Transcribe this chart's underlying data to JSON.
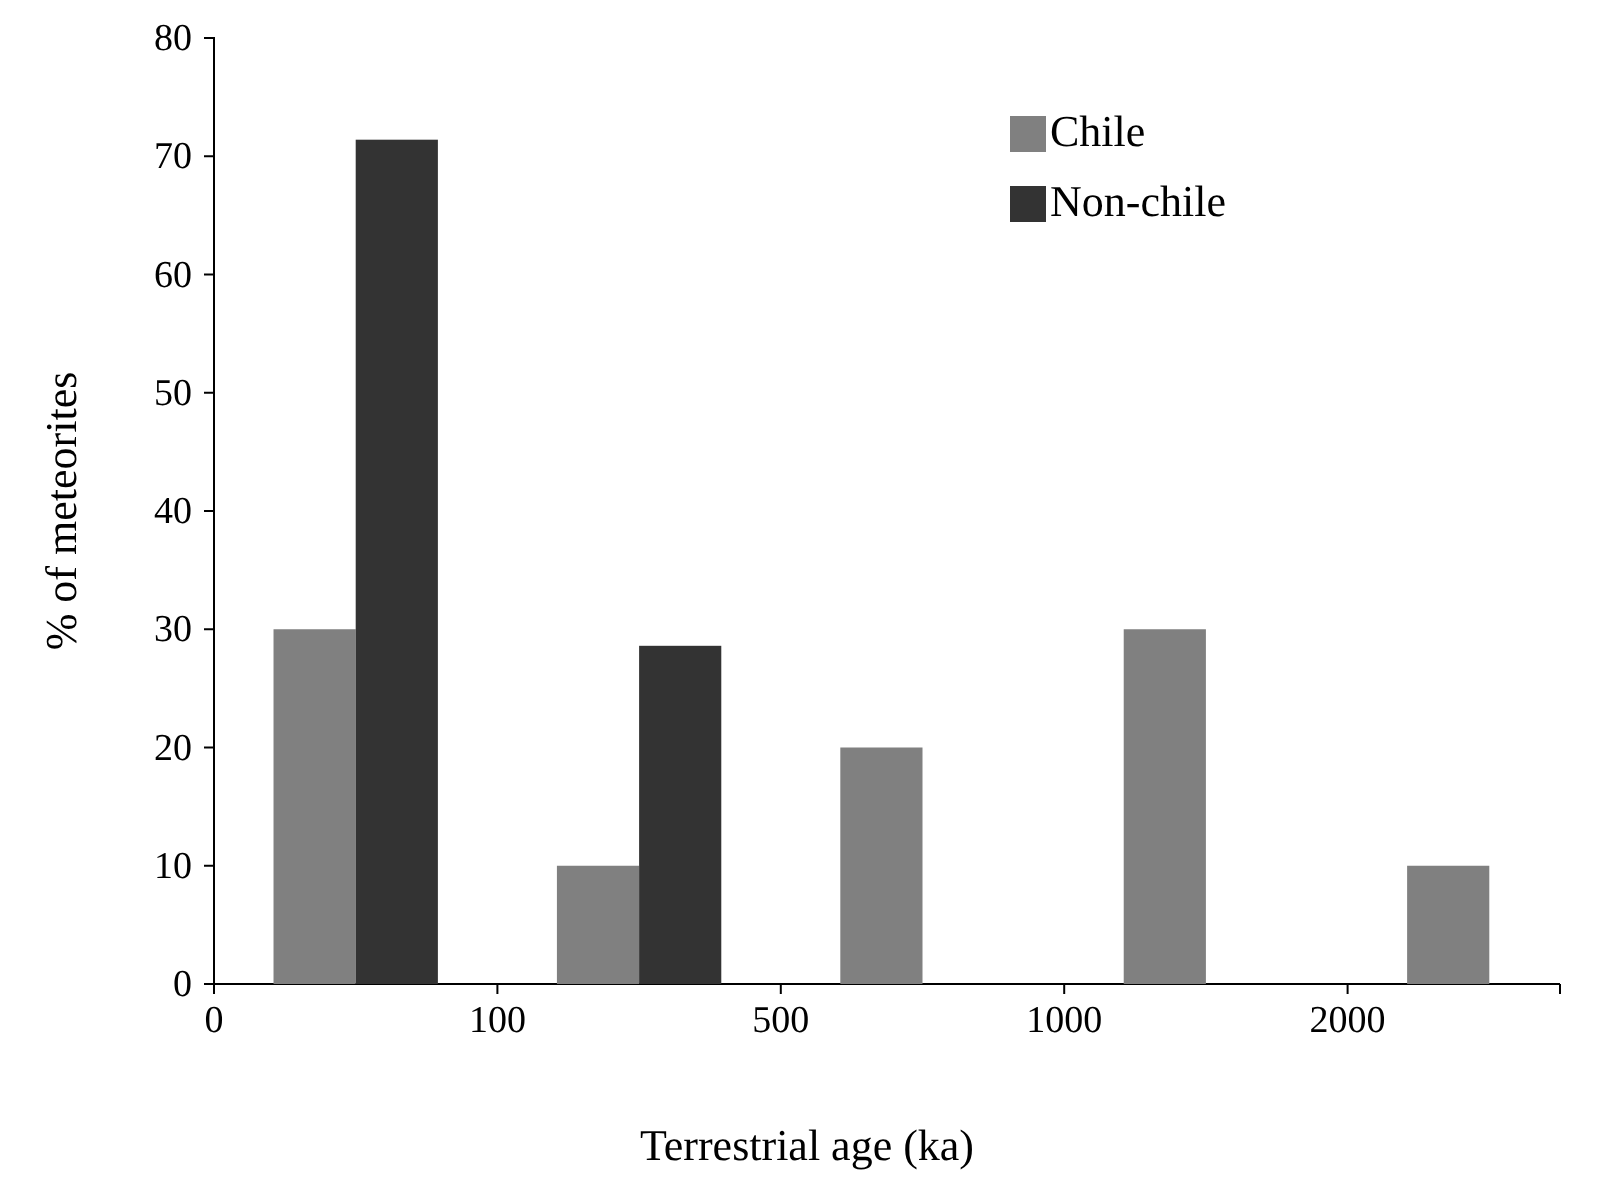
{
  "chart_data": {
    "type": "bar",
    "xlabel": "Terrestrial age (ka)",
    "ylabel": "% of meteorites",
    "categories": [
      null,
      null,
      null,
      null,
      null
    ],
    "annotations": [
      "0",
      "100",
      "500",
      "1000",
      "2000"
    ],
    "ylim": [
      0,
      80
    ],
    "yticks": [
      0,
      10,
      20,
      30,
      40,
      50,
      60,
      70,
      80
    ],
    "series": [
      {
        "name": "Chile",
        "color": "#808080",
        "values": [
          30,
          10,
          20,
          30,
          10
        ]
      },
      {
        "name": "Non-chile",
        "color": "#333333",
        "values": [
          71.4,
          28.6,
          0,
          0,
          0
        ]
      }
    ],
    "legend": "top right",
    "grid": false
  }
}
